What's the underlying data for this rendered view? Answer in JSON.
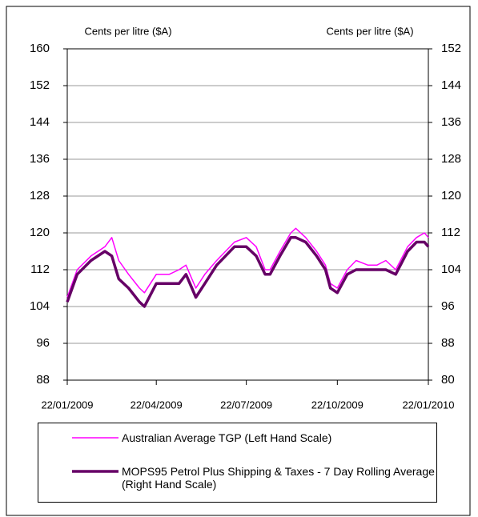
{
  "chart_data": {
    "type": "line",
    "y_label": "Cents per litre ($A)",
    "y2_label": "Cents per litre ($A)",
    "x": [
      "2009-01-22",
      "2009-02-01",
      "2009-02-15",
      "2009-03-01",
      "2009-03-08",
      "2009-03-15",
      "2009-03-25",
      "2009-04-05",
      "2009-04-10",
      "2009-04-22",
      "2009-05-05",
      "2009-05-15",
      "2009-05-22",
      "2009-06-01",
      "2009-06-10",
      "2009-06-22",
      "2009-07-01",
      "2009-07-10",
      "2009-07-22",
      "2009-08-01",
      "2009-08-10",
      "2009-08-15",
      "2009-08-25",
      "2009-09-05",
      "2009-09-10",
      "2009-09-20",
      "2009-10-01",
      "2009-10-10",
      "2009-10-15",
      "2009-10-22",
      "2009-11-01",
      "2009-11-10",
      "2009-11-22",
      "2009-12-01",
      "2009-12-10",
      "2009-12-20",
      "2010-01-01",
      "2010-01-10",
      "2010-01-18",
      "2010-01-22"
    ],
    "series": [
      {
        "name": "Australian Average TGP (Left Hand Scale)",
        "color": "#ff00ff",
        "width": 1.5,
        "values": [
          106,
          112,
          115,
          117,
          119,
          114,
          111,
          108,
          107,
          111,
          111,
          112,
          113,
          108,
          111,
          114,
          116,
          118,
          119,
          117,
          112,
          112,
          116,
          120,
          121,
          119,
          116,
          113,
          109,
          108,
          112,
          114,
          113,
          113,
          114,
          112,
          117,
          119,
          120,
          119
        ]
      },
      {
        "name": "MOPS95 Petrol Plus Shipping & Taxes - 7 Day Rolling Average (Right Hand Scale)",
        "color": "#660066",
        "width": 3.5,
        "axis": "y2",
        "values": [
          97,
          103,
          106,
          108,
          107,
          102,
          100,
          97,
          96,
          101,
          101,
          101,
          103,
          98,
          101,
          105,
          107,
          109,
          109,
          107,
          103,
          103,
          107,
          111,
          111,
          110,
          107,
          104,
          100,
          99,
          103,
          104,
          104,
          104,
          104,
          103,
          108,
          110,
          110,
          109
        ]
      }
    ],
    "xlim": [
      "2009-01-22",
      "2010-01-22"
    ],
    "xticks": [
      {
        "value": "2009-01-22",
        "label": "22/01/2009"
      },
      {
        "value": "2009-04-22",
        "label": "22/04/2009"
      },
      {
        "value": "2009-07-22",
        "label": "22/07/2009"
      },
      {
        "value": "2009-10-22",
        "label": "22/10/2009"
      },
      {
        "value": "2010-01-22",
        "label": "22/01/2010"
      }
    ],
    "ylim": [
      88,
      160
    ],
    "yticks": [
      88,
      96,
      104,
      112,
      120,
      128,
      136,
      144,
      152,
      160
    ],
    "y2lim": [
      80,
      152
    ],
    "y2ticks": [
      80,
      88,
      96,
      104,
      112,
      120,
      128,
      136,
      144,
      152
    ],
    "grid": true
  }
}
